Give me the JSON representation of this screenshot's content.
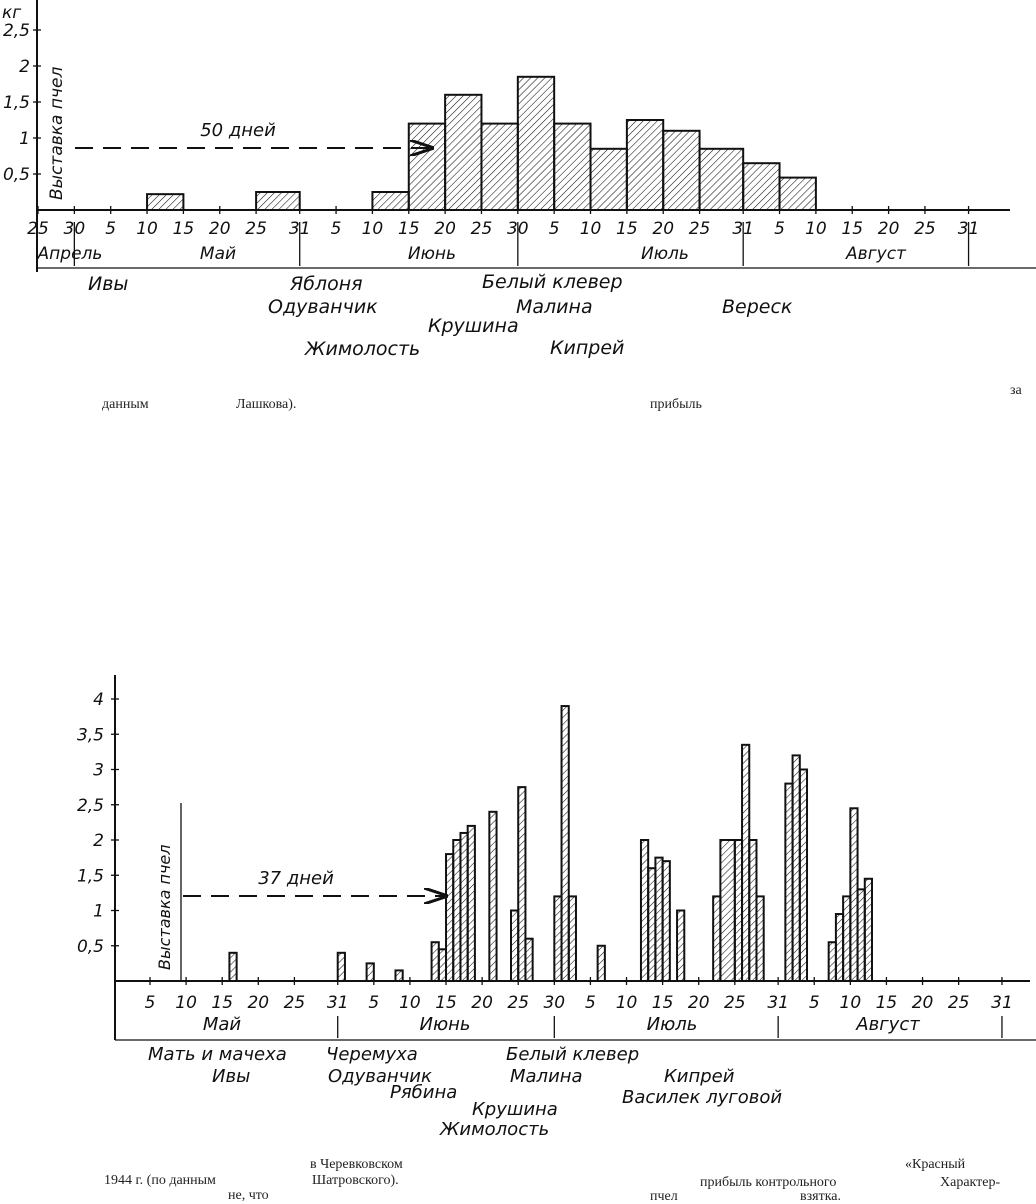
{
  "captions": {
    "fig1_line": [
      "данным",
      "Лашкова).",
      "прибыль",
      "за"
    ],
    "fig2_line1": [
      "1944 г. (по данным",
      "в Черевковском",
      "прибыль контрольного",
      "«Красный"
    ],
    "fig2_line2": [
      "не, что",
      "Шатровского).",
      "пчел",
      "взятка.",
      "Характер-"
    ]
  },
  "chart_data": [
    {
      "type": "bar",
      "title": "",
      "ylabel": "кг",
      "y_ticks": [
        "2,5",
        "2",
        "1,5",
        "1",
        "0,5"
      ],
      "ylim": [
        0,
        2.6
      ],
      "y_axis_text": "Выставка пчел",
      "annotation": "50 дней",
      "x_ticks": [
        "25",
        "30",
        "5",
        "10",
        "15",
        "20",
        "25",
        "31",
        "5",
        "10",
        "15",
        "20",
        "25",
        "30",
        "5",
        "10",
        "15",
        "20",
        "25",
        "31",
        "5",
        "10",
        "15",
        "20",
        "25",
        "31"
      ],
      "months": [
        "Апрель",
        "Май",
        "Июнь",
        "Июль",
        "Август"
      ],
      "grid": false,
      "bars": [
        {
          "start": "May 10",
          "end": "May 15",
          "value": 0.22
        },
        {
          "start": "May 25",
          "end": "May 31",
          "value": 0.25
        },
        {
          "start": "Jun 10",
          "end": "Jun 15",
          "value": 0.25
        },
        {
          "start": "Jun 15",
          "end": "Jun 20",
          "value": 1.2
        },
        {
          "start": "Jun 20",
          "end": "Jun 25",
          "value": 1.6
        },
        {
          "start": "Jun 25",
          "end": "Jun 30",
          "value": 1.2
        },
        {
          "start": "Jun 30",
          "end": "Jul 5",
          "value": 1.85
        },
        {
          "start": "Jul 5",
          "end": "Jul 10",
          "value": 1.2
        },
        {
          "start": "Jul 10",
          "end": "Jul 15",
          "value": 0.85
        },
        {
          "start": "Jul 15",
          "end": "Jul 20",
          "value": 1.25
        },
        {
          "start": "Jul 20",
          "end": "Jul 25",
          "value": 1.1
        },
        {
          "start": "Jul 25",
          "end": "Jul 31",
          "value": 0.85
        },
        {
          "start": "Jul 31",
          "end": "Aug 5",
          "value": 0.65
        },
        {
          "start": "Aug 5",
          "end": "Aug 10",
          "value": 0.45
        }
      ],
      "plants": [
        "Ивы",
        "Яблоня",
        "Одуванчик",
        "Жимолость",
        "Крушина",
        "Белый клевер",
        "Малина",
        "Кипрей",
        "Вереск"
      ]
    },
    {
      "type": "bar",
      "title": "",
      "ylabel": "",
      "y_ticks": [
        "4",
        "3,5",
        "3",
        "2,5",
        "2",
        "1,5",
        "1",
        "0,5"
      ],
      "ylim": [
        0,
        4.2
      ],
      "y_axis_text": "Выставка пчел",
      "annotation": "37 дней",
      "x_ticks": [
        "5",
        "10",
        "15",
        "20",
        "25",
        "31",
        "5",
        "10",
        "15",
        "20",
        "25",
        "30",
        "5",
        "10",
        "15",
        "20",
        "25",
        "31",
        "5",
        "10",
        "15",
        "20",
        "25",
        "31"
      ],
      "months": [
        "Май",
        "Июнь",
        "Июль",
        "Август"
      ],
      "grid": false,
      "bars": [
        {
          "start": "May 16",
          "end": "May 17",
          "value": 0.4
        },
        {
          "start": "May 31",
          "end": "Jun 1",
          "value": 0.4
        },
        {
          "start": "Jun 4",
          "end": "Jun 5",
          "value": 0.25
        },
        {
          "start": "Jun 8",
          "end": "Jun 9",
          "value": 0.15
        },
        {
          "start": "Jun 13",
          "end": "Jun 14",
          "value": 0.55
        },
        {
          "start": "Jun 14",
          "end": "Jun 15",
          "value": 0.45
        },
        {
          "start": "Jun 15",
          "end": "Jun 16",
          "value": 1.8
        },
        {
          "start": "Jun 16",
          "end": "Jun 17",
          "value": 2.0
        },
        {
          "start": "Jun 17",
          "end": "Jun 18",
          "value": 2.1
        },
        {
          "start": "Jun 18",
          "end": "Jun 19",
          "value": 2.2
        },
        {
          "start": "Jun 21",
          "end": "Jun 22",
          "value": 2.4
        },
        {
          "start": "Jun 24",
          "end": "Jun 25",
          "value": 1.0
        },
        {
          "start": "Jun 25",
          "end": "Jun 26",
          "value": 2.75
        },
        {
          "start": "Jun 26",
          "end": "Jun 27",
          "value": 0.6
        },
        {
          "start": "Jun 30",
          "end": "Jul 1",
          "value": 1.2
        },
        {
          "start": "Jul 1",
          "end": "Jul 2",
          "value": 3.9
        },
        {
          "start": "Jul 2",
          "end": "Jul 3",
          "value": 1.2
        },
        {
          "start": "Jul 6",
          "end": "Jul 7",
          "value": 0.5
        },
        {
          "start": "Jul 12",
          "end": "Jul 13",
          "value": 2.0
        },
        {
          "start": "Jul 13",
          "end": "Jul 14",
          "value": 1.6
        },
        {
          "start": "Jul 14",
          "end": "Jul 15",
          "value": 1.75
        },
        {
          "start": "Jul 15",
          "end": "Jul 16",
          "value": 1.7
        },
        {
          "start": "Jul 17",
          "end": "Jul 18",
          "value": 1.0
        },
        {
          "start": "Jul 22",
          "end": "Jul 23",
          "value": 1.2
        },
        {
          "start": "Jul 23",
          "end": "Jul 25",
          "value": 2.0
        },
        {
          "start": "Jul 25",
          "end": "Jul 26",
          "value": 2.0
        },
        {
          "start": "Jul 26",
          "end": "Jul 27",
          "value": 3.35
        },
        {
          "start": "Jul 27",
          "end": "Jul 28",
          "value": 2.0
        },
        {
          "start": "Jul 28",
          "end": "Jul 29",
          "value": 1.2
        },
        {
          "start": "Aug 1",
          "end": "Aug 2",
          "value": 2.8
        },
        {
          "start": "Aug 2",
          "end": "Aug 3",
          "value": 3.2
        },
        {
          "start": "Aug 3",
          "end": "Aug 4",
          "value": 3.0
        },
        {
          "start": "Aug 7",
          "end": "Aug 8",
          "value": 0.55
        },
        {
          "start": "Aug 8",
          "end": "Aug 9",
          "value": 0.95
        },
        {
          "start": "Aug 9",
          "end": "Aug 10",
          "value": 1.2
        },
        {
          "start": "Aug 10",
          "end": "Aug 11",
          "value": 2.45
        },
        {
          "start": "Aug 11",
          "end": "Aug 12",
          "value": 1.3
        },
        {
          "start": "Aug 12",
          "end": "Aug 13",
          "value": 1.45
        }
      ],
      "plants": [
        "Мать и мачеха",
        "Ивы",
        "Черемуха",
        "Одуванчик",
        "Рябина",
        "Крушина",
        "Жимолость",
        "Белый клевер",
        "Малина",
        "Кипрей",
        "Василек луговой"
      ]
    }
  ]
}
